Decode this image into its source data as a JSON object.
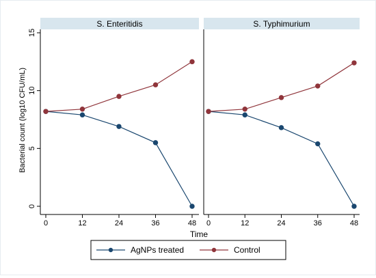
{
  "chart_data": {
    "type": "line",
    "ylabel": "Bacterial count (log10 CFU/mL)",
    "xlabel": "Time",
    "x": [
      0,
      12,
      24,
      36,
      48
    ],
    "xlim": [
      0,
      48
    ],
    "ylim": [
      0,
      15
    ],
    "yticks": [
      0,
      5,
      10,
      15
    ],
    "grid": false,
    "legend_position": "bottom",
    "panels": [
      {
        "title": "S. Enteritidis",
        "series": [
          {
            "name": "AgNPs treated",
            "color": "#1a476f",
            "values": [
              8.2,
              7.9,
              6.9,
              5.5,
              0.0
            ]
          },
          {
            "name": "Control",
            "color": "#90353b",
            "values": [
              8.2,
              8.4,
              9.5,
              10.5,
              12.5
            ]
          }
        ]
      },
      {
        "title": "S. Typhimurium",
        "series": [
          {
            "name": "AgNPs treated",
            "color": "#1a476f",
            "values": [
              8.2,
              7.9,
              6.8,
              5.4,
              0.0
            ]
          },
          {
            "name": "Control",
            "color": "#90353b",
            "values": [
              8.2,
              8.4,
              9.4,
              10.4,
              12.4
            ]
          }
        ]
      }
    ],
    "legend": [
      {
        "label": "AgNPs treated",
        "color": "#1a476f"
      },
      {
        "label": "Control",
        "color": "#90353b"
      }
    ],
    "colors": {
      "panel_header": "#d8e6ee",
      "axis": "#000000"
    }
  }
}
